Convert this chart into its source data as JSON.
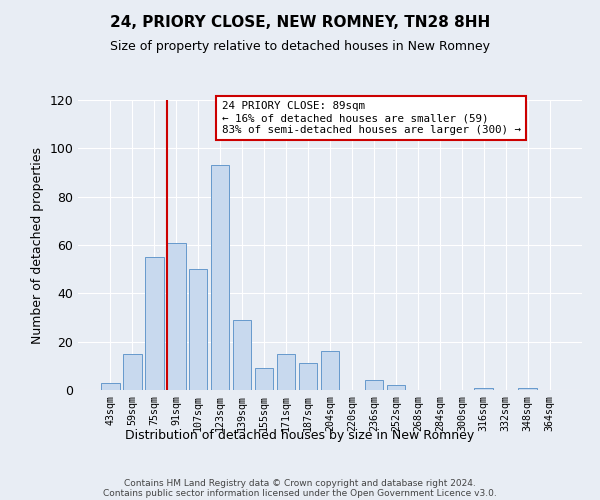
{
  "title": "24, PRIORY CLOSE, NEW ROMNEY, TN28 8HH",
  "subtitle": "Size of property relative to detached houses in New Romney",
  "xlabel": "Distribution of detached houses by size in New Romney",
  "ylabel": "Number of detached properties",
  "bar_color": "#c8d9ee",
  "bar_edge_color": "#6699cc",
  "categories": [
    "43sqm",
    "59sqm",
    "75sqm",
    "91sqm",
    "107sqm",
    "123sqm",
    "139sqm",
    "155sqm",
    "171sqm",
    "187sqm",
    "204sqm",
    "220sqm",
    "236sqm",
    "252sqm",
    "268sqm",
    "284sqm",
    "300sqm",
    "316sqm",
    "332sqm",
    "348sqm",
    "364sqm"
  ],
  "values": [
    3,
    15,
    55,
    61,
    50,
    93,
    29,
    9,
    15,
    11,
    16,
    0,
    4,
    2,
    0,
    0,
    0,
    1,
    0,
    1,
    0
  ],
  "ylim": [
    0,
    120
  ],
  "yticks": [
    0,
    20,
    40,
    60,
    80,
    100,
    120
  ],
  "vline_color": "#cc0000",
  "vline_index": 3,
  "annotation_text": "24 PRIORY CLOSE: 89sqm\n← 16% of detached houses are smaller (59)\n83% of semi-detached houses are larger (300) →",
  "annotation_box_color": "#ffffff",
  "annotation_box_edge_color": "#cc0000",
  "footer_line1": "Contains HM Land Registry data © Crown copyright and database right 2024.",
  "footer_line2": "Contains public sector information licensed under the Open Government Licence v3.0.",
  "bg_color": "#e8edf4",
  "plot_bg_color": "#e8edf4"
}
